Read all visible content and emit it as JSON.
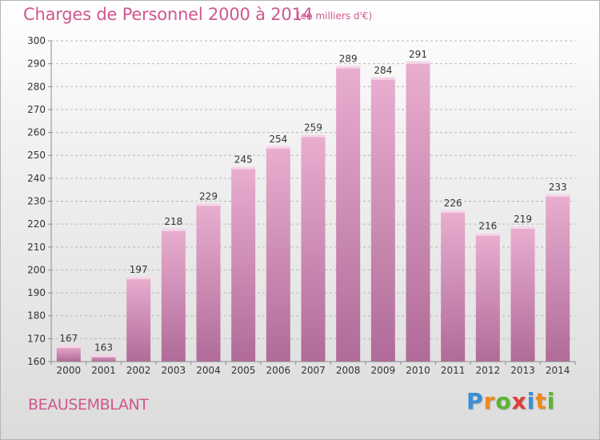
{
  "header": {
    "title": "Charges de Personnel 2000 à 2014",
    "unit": "(en milliers d'€)"
  },
  "footer": {
    "commune": "BEAUSEMBLANT",
    "logo_letters": [
      "P",
      "r",
      "o",
      "x",
      "i",
      "t",
      "i"
    ],
    "logo_colors": [
      "#3a8fd6",
      "#f08a1c",
      "#5cb531",
      "#e23b3b",
      "#3a8fd6",
      "#f08a1c",
      "#5cb531"
    ]
  },
  "colors": {
    "bar_top": "#e9aed0",
    "bar_bottom": "#b06b98",
    "bar_highlight": "#f6d6e8",
    "axis": "#8c8c8c",
    "grid": "#b8b8b8",
    "text": "#333333"
  },
  "chart_data": {
    "type": "bar",
    "title": "Charges de Personnel 2000 à 2014",
    "subtitle": "(en milliers d'€)",
    "categories": [
      "2000",
      "2001",
      "2002",
      "2003",
      "2004",
      "2005",
      "2006",
      "2007",
      "2008",
      "2009",
      "2010",
      "2011",
      "2012",
      "2013",
      "2014"
    ],
    "values": [
      167,
      163,
      197,
      218,
      229,
      245,
      254,
      259,
      289,
      284,
      291,
      226,
      216,
      219,
      233
    ],
    "xlabel": "",
    "ylabel": "",
    "ylim": [
      160,
      300
    ],
    "yticks": [
      160,
      170,
      180,
      190,
      200,
      210,
      220,
      230,
      240,
      250,
      260,
      270,
      280,
      290,
      300
    ],
    "grid": true,
    "grid_style": "dashed",
    "data_labels": true
  }
}
